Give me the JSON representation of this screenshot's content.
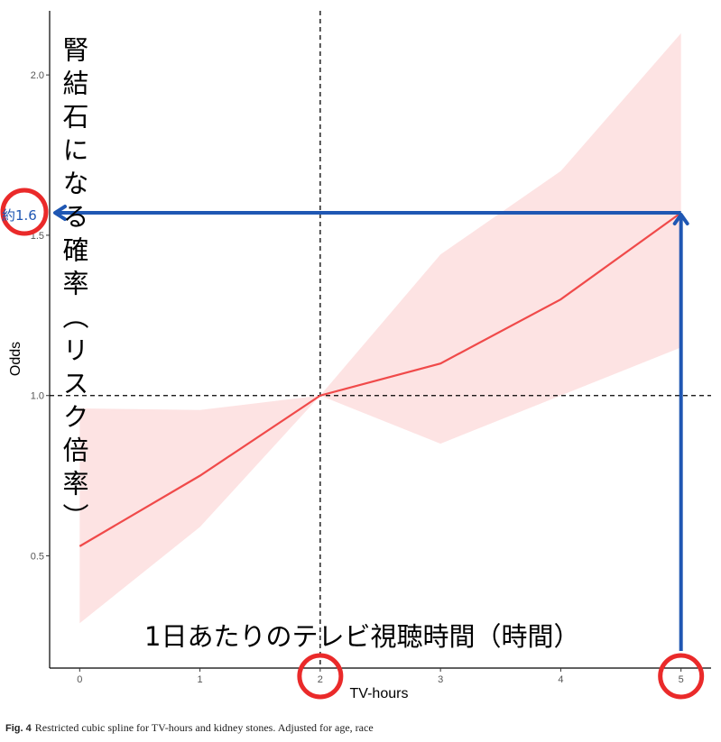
{
  "chart_data": {
    "type": "line",
    "xlabel": "TV-hours",
    "ylabel": "Odds",
    "xlim": [
      -0.25,
      5.25
    ],
    "ylim": [
      0.15,
      2.2
    ],
    "x_ticks": [
      0,
      1,
      2,
      3,
      4,
      5
    ],
    "x_tick_labels": [
      "0",
      "1",
      "2",
      "3",
      "4",
      "5"
    ],
    "y_ticks": [
      0.5,
      1.0,
      1.5,
      2.0
    ],
    "y_tick_labels": [
      "0.5",
      "1.0",
      "1.5",
      "2.0"
    ],
    "series": [
      {
        "x": [
          0,
          1,
          2,
          3,
          4,
          5
        ],
        "values": [
          0.53,
          0.75,
          1.0,
          1.1,
          1.3,
          1.57
        ],
        "lower": [
          0.29,
          0.59,
          1.0,
          0.85,
          1.0,
          1.15
        ],
        "upper": [
          0.96,
          0.955,
          1.0,
          1.44,
          1.7,
          2.13
        ],
        "color": "#f04a4a",
        "band_color": "#fde3e3"
      }
    ],
    "reference_lines": {
      "x": 2,
      "y": 1.0
    }
  },
  "annotations": {
    "vertical_text": "腎結石になる確率（リスク倍率）",
    "horizontal_text": "1日あたりのテレビ視聴時間（時間）",
    "value_label": "約1.6",
    "arrow_color": "#1f57b3",
    "circle_color": "#ea2a2a"
  },
  "caption": {
    "label": "Fig. 4",
    "text": "Restricted cubic spline for TV-hours and kidney stones. Adjusted for age, race"
  }
}
